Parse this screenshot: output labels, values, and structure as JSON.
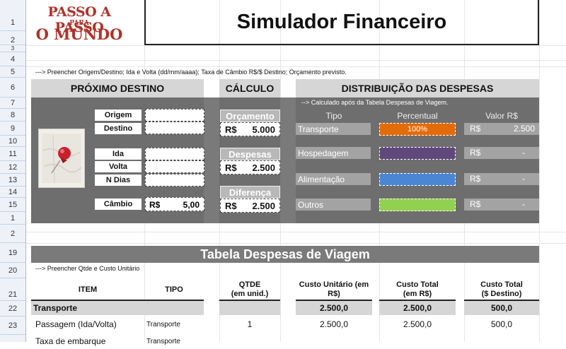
{
  "row_numbers": [
    "1",
    "2",
    "3",
    "4",
    "5",
    "6",
    "7",
    "8",
    "9",
    "10",
    "11",
    "12",
    "13",
    "14",
    "15",
    "1",
    "2",
    "19",
    "20",
    "21",
    "22",
    "23"
  ],
  "logo": {
    "line1": "PASSO A PASSO",
    "line2": "PARA",
    "line3": "O MUNDO"
  },
  "title": "Simulador Financeiro",
  "instruction_top": "---> Preencher Origem/Destino; Ida e Volta (dd/mm/aaaa); Taxa de Câmbio R$/$ Destino; Orçamento previsto.",
  "proximo": {
    "header": "PRÓXIMO DESTINO",
    "origem_label": "Origem",
    "destino_label": "Destino",
    "ida_label": "Ida",
    "volta_label": "Volta",
    "ndias_label": "N Dias",
    "cambio_label": "Câmbio",
    "cambio_currency": "R$",
    "cambio_value": "5,00"
  },
  "calculo": {
    "header": "CÁLCULO",
    "orcamento_label": "Orçamento",
    "orcamento_currency": "R$",
    "orcamento_value": "5.000",
    "despesas_label": "Despesas",
    "despesas_currency": "R$",
    "despesas_value": "2.500",
    "diferenca_label": "Diferença",
    "diferenca_currency": "R$",
    "diferenca_value": "2.500"
  },
  "distribuicao": {
    "header": "DISTRIBUIÇÃO DAS DESPESAS",
    "note": "--> Calculado após da Tabela Despesas de Viagem.",
    "col_tipo": "Tipo",
    "col_percentual": "Percentual",
    "col_valor": "Valor R$",
    "rows": [
      {
        "tipo": "Transporte",
        "percent": "100%",
        "color": "#e36c0a",
        "currency": "R$",
        "valor": "2.500"
      },
      {
        "tipo": "Hospedagem",
        "percent": "",
        "color": "#60497a",
        "currency": "R$",
        "valor": "-"
      },
      {
        "tipo": "Alimentação",
        "percent": "",
        "color": "#4a86d4",
        "currency": "R$",
        "valor": "-"
      },
      {
        "tipo": "Outros",
        "percent": "",
        "color": "#92d050",
        "currency": "R$",
        "valor": "-"
      }
    ]
  },
  "tabela": {
    "title": "Tabela Despesas de Viagem",
    "instruction": "---> Preencher Qtde e Custo Unitário",
    "headers": {
      "item": "ITEM",
      "tipo": "TIPO",
      "qtde_1": "QTDE",
      "qtde_2": "(em unid.)",
      "unit_1": "Custo Unitário (em",
      "unit_2": "R$)",
      "total_1": "Custo Total",
      "total_2": "(em R$)",
      "dest_1": "Custo Total",
      "dest_2": "($ Destino)"
    },
    "group": {
      "item": "Transporte",
      "unit": "2.500,0",
      "total": "2.500,0",
      "dest": "500,0"
    },
    "rows": [
      {
        "item": "Passagem (Ida/Volta)",
        "tipo": "Transporte",
        "qtde": "1",
        "unit": "2.500,0",
        "total": "2.500,0",
        "dest": "500,0"
      },
      {
        "item": "Taxa de embarque",
        "tipo": "Transporte",
        "qtde": "",
        "unit": "",
        "total": "",
        "dest": ""
      }
    ]
  }
}
